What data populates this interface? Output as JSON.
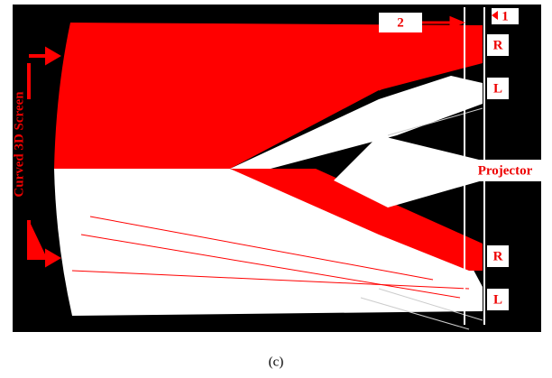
{
  "figure": {
    "screen_label": "Curved 3D Screen",
    "marker_2": "2",
    "marker_1": "1",
    "labels": {
      "top_right": "R",
      "top_left": "L",
      "projector": "Projector",
      "bottom_right": "R",
      "bottom_left": "L"
    },
    "caption": "(c)"
  }
}
